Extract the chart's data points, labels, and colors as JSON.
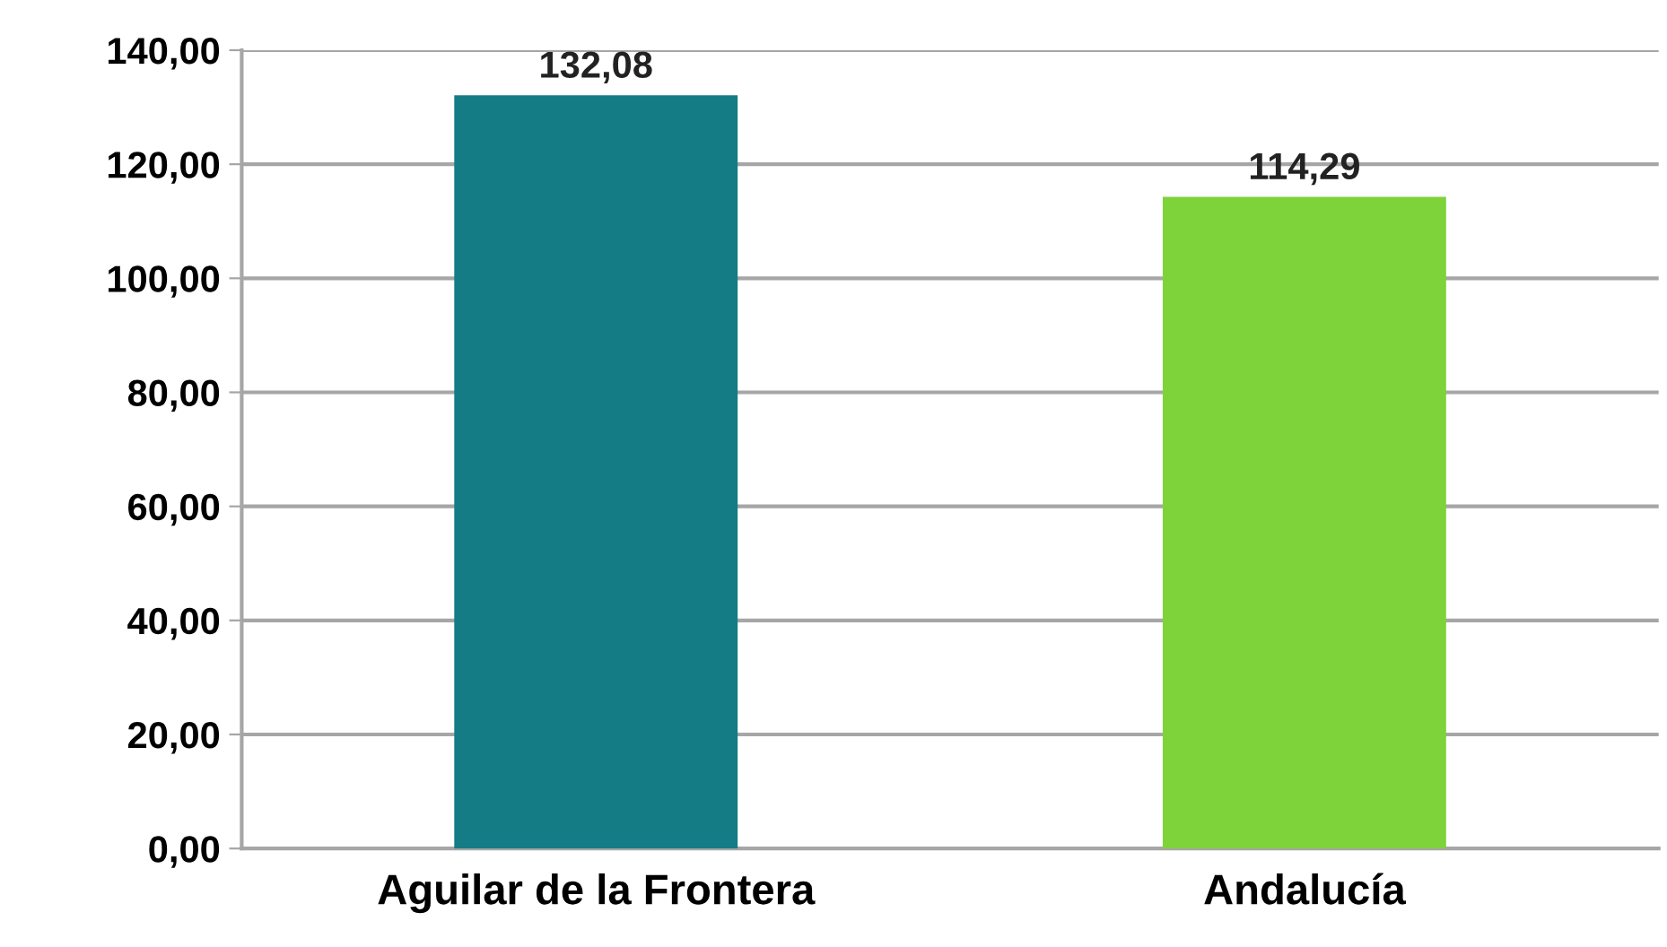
{
  "chart_data": {
    "type": "bar",
    "categories": [
      "Aguilar de la Frontera",
      "Andalucía"
    ],
    "values": [
      132.08,
      114.29
    ],
    "colors": [
      "#137c85",
      "#7ed23a"
    ],
    "value_labels": [
      "132,08",
      "114,29"
    ],
    "ylim": [
      0,
      140
    ],
    "yticks": [
      {
        "value": 0,
        "label": "0,00"
      },
      {
        "value": 20,
        "label": "20,00"
      },
      {
        "value": 40,
        "label": "40,00"
      },
      {
        "value": 60,
        "label": "60,00"
      },
      {
        "value": 80,
        "label": "80,00"
      },
      {
        "value": 100,
        "label": "100,00"
      },
      {
        "value": 120,
        "label": "120,00"
      },
      {
        "value": 140,
        "label": "140,00"
      }
    ],
    "grid": "y"
  }
}
